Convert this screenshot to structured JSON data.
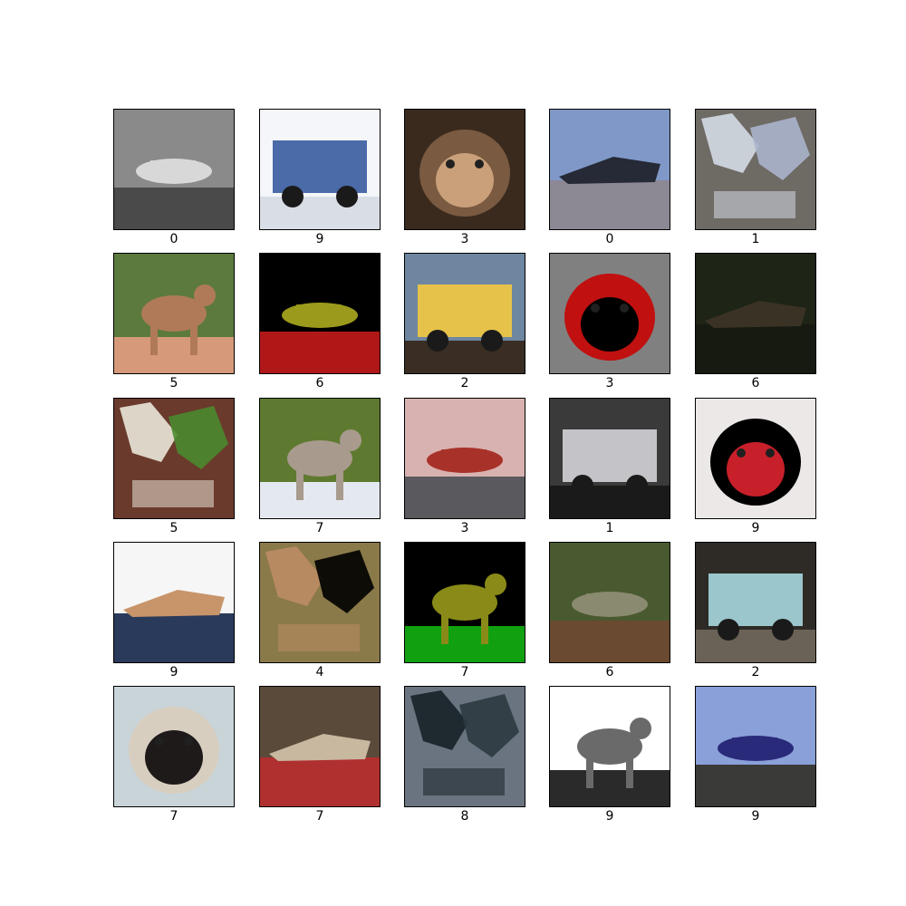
{
  "grid": {
    "rows": 5,
    "cols": 5,
    "frame_color": "#000000",
    "label_color": "#000000"
  },
  "images": [
    {
      "label": "0",
      "subject": "airplane-image",
      "colors": {
        "bg": "#8a8a8a",
        "fg": "#d8d8d8",
        "ground": "#4a4a4a"
      }
    },
    {
      "label": "9",
      "subject": "dump-truck-image",
      "colors": {
        "bg": "#f4f6fa",
        "fg": "#4a6aa8",
        "ground": "#d9dde6"
      }
    },
    {
      "label": "3",
      "subject": "cat-face-image",
      "colors": {
        "bg": "#3a2a1e",
        "fg": "#c9a07a",
        "ground": "#7a5a40"
      }
    },
    {
      "label": "0",
      "subject": "airplane-on-runway-image",
      "colors": {
        "bg": "#7f98c8",
        "fg": "#262a36",
        "ground": "#8c8894"
      }
    },
    {
      "label": "1",
      "subject": "car-image",
      "colors": {
        "bg": "#6e6a64",
        "fg": "#c9d0d8",
        "ground": "#aab4cc"
      }
    },
    {
      "label": "5",
      "subject": "dog-face-image",
      "colors": {
        "bg": "#5c7a3e",
        "fg": "#b07a58",
        "ground": "#d69a7a"
      }
    },
    {
      "label": "6",
      "subject": "frog-posterized-image",
      "colors": {
        "bg": "#000000",
        "fg": "#9c9a1c",
        "ground": "#b01818"
      }
    },
    {
      "label": "2",
      "subject": "bird-image",
      "colors": {
        "bg": "#6e86a0",
        "fg": "#e6c24a",
        "ground": "#3a2e24"
      }
    },
    {
      "label": "3",
      "subject": "cat-silhouette-image",
      "colors": {
        "bg": "#808080",
        "fg": "#000000",
        "ground": "#c01010"
      }
    },
    {
      "label": "6",
      "subject": "frog-dark-image",
      "colors": {
        "bg": "#1e2416",
        "fg": "#3a3224",
        "ground": "#161a10"
      }
    },
    {
      "label": "5",
      "subject": "white-dog-image",
      "colors": {
        "bg": "#6a3a2c",
        "fg": "#ddd6c8",
        "ground": "#4a8a2e"
      }
    },
    {
      "label": "7",
      "subject": "deer-image",
      "colors": {
        "bg": "#5e7a30",
        "fg": "#a89a8c",
        "ground": "#e4e8f0"
      }
    },
    {
      "label": "3",
      "subject": "cat-hand-image",
      "colors": {
        "bg": "#d8b2b0",
        "fg": "#a8322a",
        "ground": "#5a5a5e"
      }
    },
    {
      "label": "1",
      "subject": "silver-car-image",
      "colors": {
        "bg": "#3a3a3a",
        "fg": "#c4c4c8",
        "ground": "#1a1a1a"
      }
    },
    {
      "label": "9",
      "subject": "red-truck-image",
      "colors": {
        "bg": "#ece8e8",
        "fg": "#c8202a",
        "ground": "#000000"
      }
    },
    {
      "label": "9",
      "subject": "box-truck-image",
      "colors": {
        "bg": "#f6f6f6",
        "fg": "#c8946a",
        "ground": "#2a3a5a"
      }
    },
    {
      "label": "4",
      "subject": "horse-head-image",
      "colors": {
        "bg": "#8a7a4a",
        "fg": "#b88a62",
        "ground": "#000000"
      }
    },
    {
      "label": "7",
      "subject": "horse-posterized-image",
      "colors": {
        "bg": "#000000",
        "fg": "#8a8a18",
        "ground": "#10a010"
      }
    },
    {
      "label": "6",
      "subject": "frog-ground-image",
      "colors": {
        "bg": "#4a5a30",
        "fg": "#8a8a70",
        "ground": "#6a4a30"
      }
    },
    {
      "label": "2",
      "subject": "bird-blue-image",
      "colors": {
        "bg": "#2e2a26",
        "fg": "#9ac6cc",
        "ground": "#6a6256"
      }
    },
    {
      "label": "7",
      "subject": "horse-rider-image",
      "colors": {
        "bg": "#c8d4d8",
        "fg": "#1e1a1a",
        "ground": "#d8cec0"
      }
    },
    {
      "label": "7",
      "subject": "horse-show-image",
      "colors": {
        "bg": "#5a4a3a",
        "fg": "#c8b8a0",
        "ground": "#b03030"
      }
    },
    {
      "label": "8",
      "subject": "ship-lake-image",
      "colors": {
        "bg": "#6a7480",
        "fg": "#1e2a30",
        "ground": "#2e3a40"
      }
    },
    {
      "label": "9",
      "subject": "gray-truck-image",
      "colors": {
        "bg": "#ffffff",
        "fg": "#6a6a6a",
        "ground": "#2a2a2a"
      }
    },
    {
      "label": "9",
      "subject": "blue-dump-truck-image",
      "colors": {
        "bg": "#8aa0d8",
        "fg": "#2a2a7a",
        "ground": "#3a3a38"
      }
    }
  ]
}
